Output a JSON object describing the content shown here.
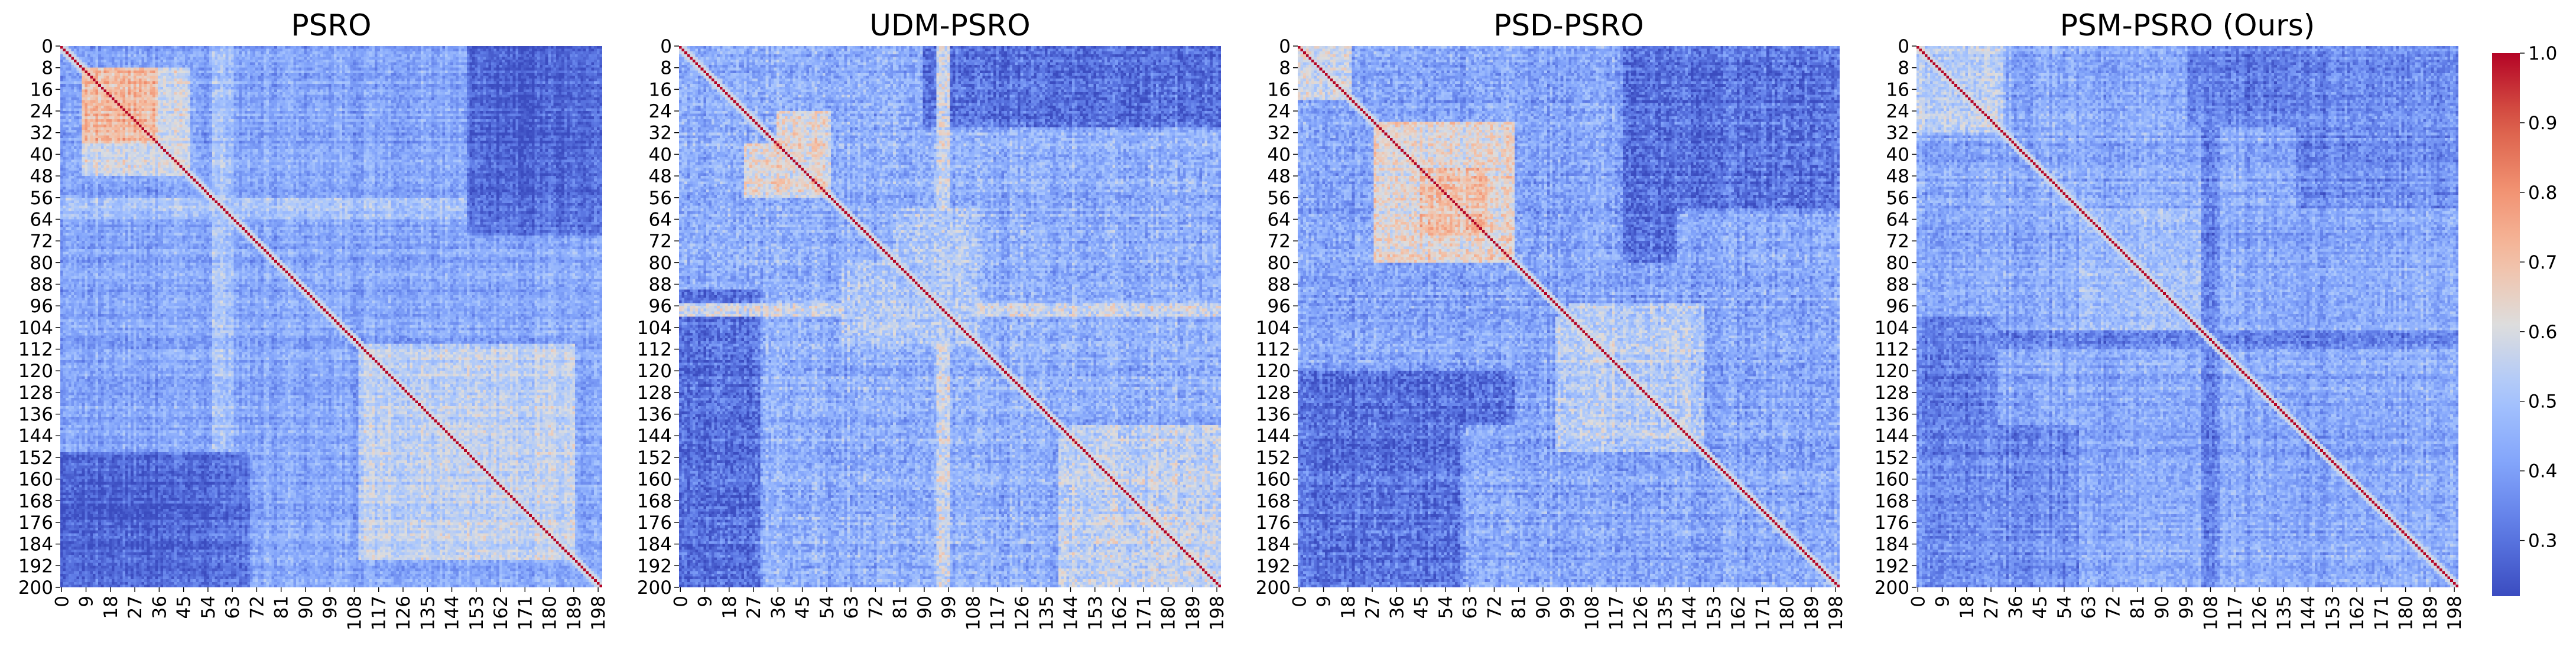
{
  "chart_data": [
    {
      "type": "heatmap",
      "title": "PSRO",
      "xlabel": "",
      "ylabel": "",
      "matrix_size": 200,
      "x_tick_labels": [
        "0",
        "9",
        "18",
        "27",
        "36",
        "45",
        "54",
        "63",
        "72",
        "81",
        "90",
        "99",
        "108",
        "117",
        "126",
        "135",
        "144",
        "153",
        "162",
        "171",
        "180",
        "189",
        "198"
      ],
      "y_tick_labels": [
        "0",
        "8",
        "16",
        "24",
        "32",
        "40",
        "48",
        "56",
        "64",
        "72",
        "80",
        "88",
        "96",
        "104",
        "112",
        "120",
        "128",
        "136",
        "144",
        "152",
        "160",
        "168",
        "176",
        "184",
        "192",
        "200"
      ],
      "diagonal_value": 1.0,
      "background_value": 0.42,
      "noise_amplitude": 0.06,
      "regions": [
        {
          "rows": [
            8,
            36
          ],
          "cols": [
            8,
            36
          ],
          "value": 0.72
        },
        {
          "rows": [
            36,
            48
          ],
          "cols": [
            8,
            48
          ],
          "value": 0.58
        },
        {
          "rows": [
            56,
            64
          ],
          "cols": [
            0,
            64
          ],
          "value": 0.62
        },
        {
          "rows": [
            0,
            200
          ],
          "cols": [
            56,
            64
          ],
          "value": 0.5
        },
        {
          "rows": [
            0,
            60
          ],
          "cols": [
            150,
            200
          ],
          "value": 0.28
        },
        {
          "rows": [
            60,
            70
          ],
          "cols": [
            150,
            200
          ],
          "value": 0.3
        },
        {
          "rows": [
            160,
            190
          ],
          "cols": [
            0,
            50
          ],
          "value": 0.26
        },
        {
          "rows": [
            110,
            190
          ],
          "cols": [
            110,
            190
          ],
          "value": 0.55
        }
      ]
    },
    {
      "type": "heatmap",
      "title": "UDM-PSRO",
      "xlabel": "",
      "ylabel": "",
      "matrix_size": 200,
      "x_tick_labels": [
        "0",
        "9",
        "18",
        "27",
        "36",
        "45",
        "54",
        "63",
        "72",
        "81",
        "90",
        "99",
        "108",
        "117",
        "126",
        "135",
        "144",
        "153",
        "162",
        "171",
        "180",
        "189",
        "198"
      ],
      "y_tick_labels": [
        "0",
        "8",
        "16",
        "24",
        "32",
        "40",
        "48",
        "56",
        "64",
        "72",
        "80",
        "88",
        "96",
        "104",
        "112",
        "120",
        "128",
        "136",
        "144",
        "152",
        "160",
        "168",
        "176",
        "184",
        "192",
        "200"
      ],
      "diagonal_value": 1.0,
      "background_value": 0.45,
      "noise_amplitude": 0.08,
      "regions": [
        {
          "rows": [
            36,
            56
          ],
          "cols": [
            24,
            56
          ],
          "value": 0.62
        },
        {
          "rows": [
            0,
            30
          ],
          "cols": [
            130,
            200
          ],
          "value": 0.3
        },
        {
          "rows": [
            90,
            200
          ],
          "cols": [
            0,
            30
          ],
          "value": 0.3
        },
        {
          "rows": [
            140,
            200
          ],
          "cols": [
            145,
            200
          ],
          "value": 0.56
        },
        {
          "rows": [
            0,
            200
          ],
          "cols": [
            95,
            100
          ],
          "value": 0.58
        },
        {
          "rows": [
            80,
            110
          ],
          "cols": [
            60,
            110
          ],
          "value": 0.52
        }
      ]
    },
    {
      "type": "heatmap",
      "title": "PSD-PSRO",
      "xlabel": "",
      "ylabel": "",
      "matrix_size": 200,
      "x_tick_labels": [
        "0",
        "9",
        "18",
        "27",
        "36",
        "45",
        "54",
        "63",
        "72",
        "81",
        "90",
        "99",
        "108",
        "117",
        "126",
        "135",
        "144",
        "153",
        "162",
        "171",
        "180",
        "189",
        "198"
      ],
      "y_tick_labels": [
        "0",
        "8",
        "16",
        "24",
        "32",
        "40",
        "48",
        "56",
        "64",
        "72",
        "80",
        "88",
        "96",
        "104",
        "112",
        "120",
        "128",
        "136",
        "144",
        "152",
        "160",
        "168",
        "176",
        "184",
        "192",
        "200"
      ],
      "diagonal_value": 1.0,
      "background_value": 0.42,
      "noise_amplitude": 0.08,
      "regions": [
        {
          "rows": [
            28,
            80
          ],
          "cols": [
            28,
            80
          ],
          "value": 0.62
        },
        {
          "rows": [
            45,
            70
          ],
          "cols": [
            45,
            70
          ],
          "value": 0.7
        },
        {
          "rows": [
            0,
            20
          ],
          "cols": [
            0,
            20
          ],
          "value": 0.58
        },
        {
          "rows": [
            0,
            60
          ],
          "cols": [
            130,
            200
          ],
          "value": 0.3
        },
        {
          "rows": [
            120,
            140
          ],
          "cols": [
            0,
            80
          ],
          "value": 0.3
        },
        {
          "rows": [
            100,
            150
          ],
          "cols": [
            95,
            150
          ],
          "value": 0.54
        }
      ]
    },
    {
      "type": "heatmap",
      "title": "PSM-PSRO (Ours)",
      "xlabel": "",
      "ylabel": "",
      "matrix_size": 200,
      "x_tick_labels": [
        "0",
        "9",
        "18",
        "27",
        "36",
        "45",
        "54",
        "63",
        "72",
        "81",
        "90",
        "99",
        "108",
        "117",
        "126",
        "135",
        "144",
        "153",
        "162",
        "171",
        "180",
        "189",
        "198"
      ],
      "y_tick_labels": [
        "0",
        "8",
        "16",
        "24",
        "32",
        "40",
        "48",
        "56",
        "64",
        "72",
        "80",
        "88",
        "96",
        "104",
        "112",
        "120",
        "128",
        "136",
        "144",
        "152",
        "160",
        "168",
        "176",
        "184",
        "192",
        "200"
      ],
      "diagonal_value": 1.0,
      "background_value": 0.43,
      "noise_amplitude": 0.07,
      "regions": [
        {
          "rows": [
            0,
            32
          ],
          "cols": [
            0,
            32
          ],
          "value": 0.55
        },
        {
          "rows": [
            60,
            110
          ],
          "cols": [
            60,
            110
          ],
          "value": 0.48
        },
        {
          "rows": [
            100,
            200
          ],
          "cols": [
            0,
            30
          ],
          "value": 0.33
        },
        {
          "rows": [
            105,
            112
          ],
          "cols": [
            0,
            200
          ],
          "value": 0.33
        },
        {
          "rows": [
            0,
            200
          ],
          "cols": [
            105,
            112
          ],
          "value": 0.34
        },
        {
          "rows": [
            0,
            60
          ],
          "cols": [
            140,
            200
          ],
          "value": 0.36
        }
      ]
    }
  ],
  "colorbar": {
    "cmap": "coolwarm",
    "vmin": 0.22,
    "vmax": 1.0,
    "ticks": [
      0.3,
      0.4,
      0.5,
      0.6,
      0.7,
      0.8,
      0.9,
      1.0
    ],
    "tick_labels": [
      "0.3",
      "0.4",
      "0.5",
      "0.6",
      "0.7",
      "0.8",
      "0.9",
      "1.0"
    ]
  }
}
